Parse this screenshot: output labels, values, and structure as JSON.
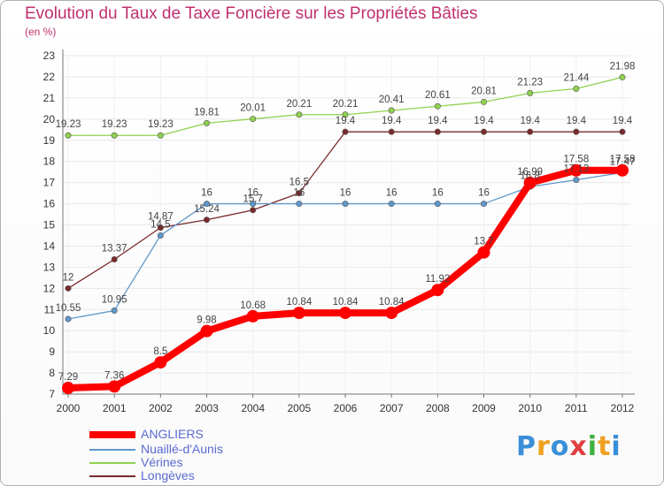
{
  "chart_data": {
    "type": "line",
    "title": "Evolution du Taux de Taxe Foncière sur les Propriétés Bâties",
    "ylabel": "(en %)",
    "xlabel": "",
    "ylim": [
      7,
      23
    ],
    "yticks": [
      7,
      8,
      9,
      10,
      11,
      12,
      13,
      14,
      15,
      16,
      17,
      18,
      19,
      20,
      21,
      22,
      23
    ],
    "categories": [
      "2000",
      "2001",
      "2002",
      "2003",
      "2004",
      "2005",
      "2006",
      "2007",
      "2008",
      "2009",
      "2010",
      "2011",
      "2012"
    ],
    "series": [
      {
        "name": "ANGLIERS",
        "color": "#ff0000",
        "emphasis": true,
        "values": [
          7.29,
          7.36,
          8.5,
          9.98,
          10.68,
          10.84,
          10.84,
          10.84,
          11.92,
          13.7,
          16.99,
          17.58,
          17.58
        ],
        "labels": [
          "7.29",
          "7.36",
          "8.5",
          "9.98",
          "10.68",
          "10.84",
          "10.84",
          "10.84",
          "11.92",
          "13.7",
          "16.99",
          "17.58",
          "17.58"
        ]
      },
      {
        "name": "Nuaillé-d'Aunis",
        "color": "#5f97c9",
        "values": [
          10.55,
          10.95,
          14.5,
          16,
          16,
          16,
          16,
          16,
          16,
          16,
          16.8,
          17.13,
          17.47
        ],
        "labels": [
          "10.55",
          "10.95",
          "14.5",
          "16",
          "16",
          "16",
          "16",
          "16",
          "16",
          "16",
          "16.8",
          "17.13",
          "17.47"
        ]
      },
      {
        "name": "Vérines",
        "color": "#8fd14f",
        "values": [
          19.23,
          19.23,
          19.23,
          19.81,
          20.01,
          20.21,
          20.21,
          20.41,
          20.61,
          20.81,
          21.23,
          21.44,
          21.98
        ],
        "labels": [
          "19.23",
          "19.23",
          "19.23",
          "19.81",
          "20.01",
          "20.21",
          "20.21",
          "20.41",
          "20.61",
          "20.81",
          "21.23",
          "21.44",
          "21.98"
        ]
      },
      {
        "name": "Longèves",
        "color": "#7a2a2a",
        "values": [
          12,
          13.37,
          14.87,
          15.24,
          15.7,
          16.5,
          19.4,
          19.4,
          19.4,
          19.4,
          19.4,
          19.4,
          19.4
        ],
        "labels": [
          "12",
          "13.37",
          "14.87",
          "15.24",
          "15.7",
          "16.5",
          "19.4",
          "19.4",
          "19.4",
          "19.4",
          "19.4",
          "19.4",
          "19.4"
        ]
      }
    ],
    "legend_position": "bottom-left"
  },
  "logo": {
    "text": "Proxiti",
    "letters": [
      "P",
      "r",
      "o",
      "x",
      "i",
      "t",
      "i"
    ],
    "colors": [
      "#3a8fd8",
      "#f0a020",
      "#3a8fd8",
      "#e04040",
      "#40b040",
      "#f0a020",
      "#3a8fd8"
    ]
  }
}
